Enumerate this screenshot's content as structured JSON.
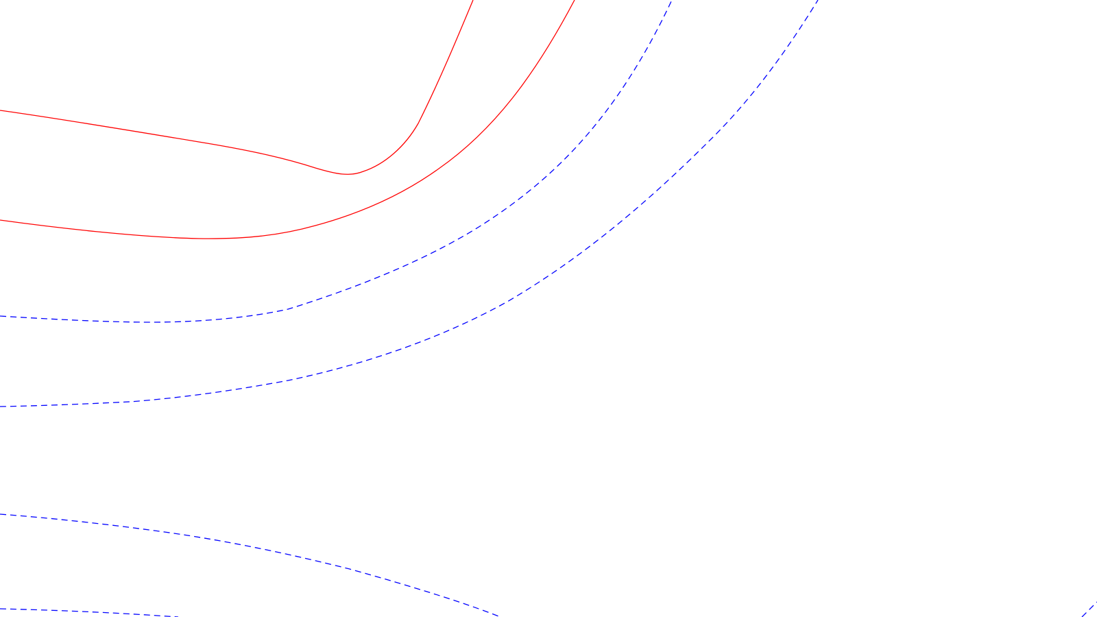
{
  "contour_plot": {
    "background_color": "#ffffff",
    "line_styles": {
      "positive": {
        "color": "#ff0000",
        "dash": "solid"
      },
      "negative": {
        "color": "#0000ff",
        "dash": "dashed"
      }
    },
    "contours": [
      {
        "id": "red-contour-1",
        "style": "positive"
      },
      {
        "id": "red-contour-2",
        "style": "positive"
      },
      {
        "id": "blue-contour-1",
        "style": "negative"
      },
      {
        "id": "blue-contour-2",
        "style": "negative"
      },
      {
        "id": "blue-contour-3",
        "style": "negative"
      },
      {
        "id": "blue-contour-4",
        "style": "negative"
      },
      {
        "id": "blue-contour-5",
        "style": "negative"
      }
    ],
    "axes_visible": false,
    "labels_visible": false
  }
}
